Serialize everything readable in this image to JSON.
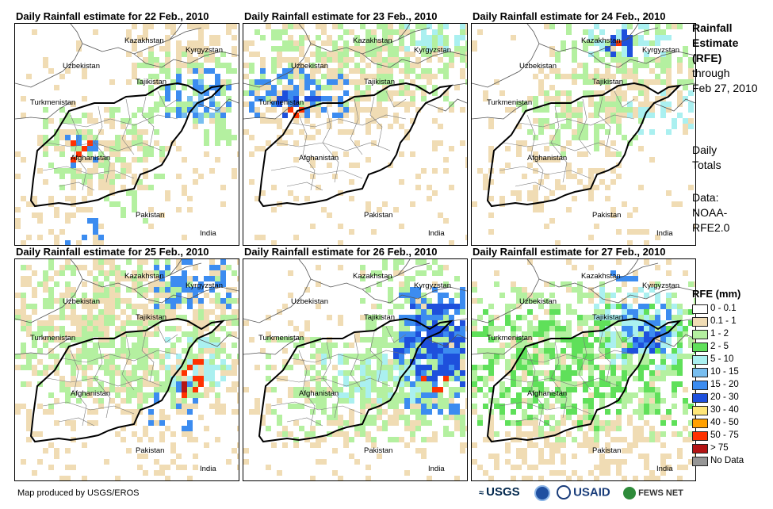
{
  "panels": [
    {
      "title": "Daily Rainfall estimate for 22 Feb., 2010"
    },
    {
      "title": "Daily Rainfall estimate for 23 Feb., 2010"
    },
    {
      "title": "Daily Rainfall estimate for 24 Feb., 2010"
    },
    {
      "title": "Daily Rainfall estimate for 25 Feb., 2010"
    },
    {
      "title": "Daily Rainfall estimate for 26 Feb., 2010"
    },
    {
      "title": "Daily Rainfall estimate for 27 Feb., 2010"
    }
  ],
  "countries": {
    "kazakhstan": "Kazakhstan",
    "kyrgyzstan": "Kyrgyzstan",
    "uzbekistan": "Uzbekistan",
    "tajikistan": "Tajikistan",
    "turkmenistan": "Turkmenistan",
    "afghanistan": "Afghanistan",
    "pakistan": "Pakistan",
    "india": "India"
  },
  "sidebar": {
    "line1": "Rainfall",
    "line2": "Estimate",
    "line3": "(RFE)",
    "line4": "through",
    "line5": "Feb 27, 2010",
    "totals1": "Daily",
    "totals2": "Totals",
    "data1": "Data:",
    "data2": "NOAA-",
    "data3": "RFE2.0"
  },
  "legend": {
    "title": "RFE (mm)",
    "items": [
      {
        "label": "0 - 0.1",
        "color": "#ffffff"
      },
      {
        "label": "0.1 - 1",
        "color": "#f0dcb4"
      },
      {
        "label": "1 - 2",
        "color": "#b4f0a0"
      },
      {
        "label": "2 - 5",
        "color": "#5fe05a"
      },
      {
        "label": "5 - 10",
        "color": "#aaf0f0"
      },
      {
        "label": "10 - 15",
        "color": "#78bef0"
      },
      {
        "label": "15 - 20",
        "color": "#3c8cf0"
      },
      {
        "label": "20 - 30",
        "color": "#1e50dc"
      },
      {
        "label": "30 - 40",
        "color": "#ffe678"
      },
      {
        "label": "40 - 50",
        "color": "#ffa000"
      },
      {
        "label": "50 - 75",
        "color": "#ff3200"
      },
      {
        "label": "> 75",
        "color": "#b41414"
      },
      {
        "label": "No Data",
        "color": "#969696"
      }
    ]
  },
  "footer": {
    "credit": "Map produced by USGS/EROS",
    "usgs": "USGS",
    "usaid": "USAID",
    "fewsnet": "FEWS NET"
  }
}
